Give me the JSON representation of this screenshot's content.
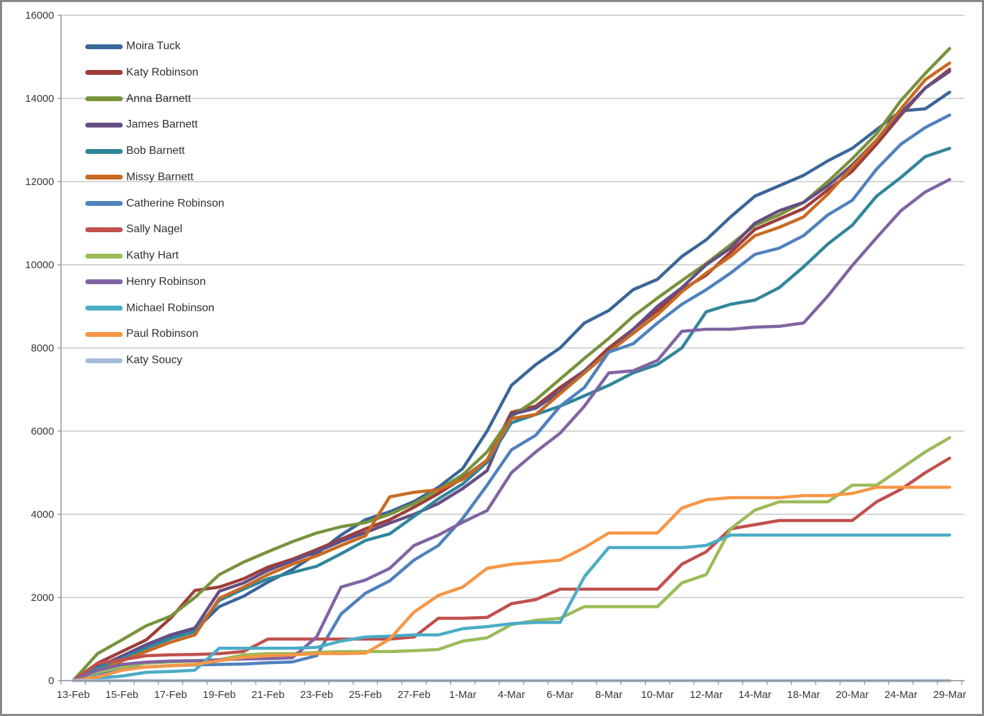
{
  "chart_data": {
    "type": "line",
    "title": "",
    "xlabel": "",
    "ylabel": "",
    "grid": true,
    "legend_position": "top-left-inside",
    "y_axis": {
      "min": 0,
      "max": 16000,
      "step": 2000,
      "tick_labels": [
        "0",
        "2000",
        "4000",
        "6000",
        "8000",
        "10000",
        "12000",
        "14000",
        "16000"
      ]
    },
    "x_tick_labels": [
      "13-Feb",
      "15-Feb",
      "17-Feb",
      "19-Feb",
      "21-Feb",
      "23-Feb",
      "25-Feb",
      "27-Feb",
      "1-Mar",
      "4-Mar",
      "6-Mar",
      "8-Mar",
      "10-Mar",
      "12-Mar",
      "14-Mar",
      "18-Mar",
      "20-Mar",
      "24-Mar",
      "29-Mar"
    ],
    "categories": [
      "13-Feb",
      "",
      "15-Feb",
      "",
      "17-Feb",
      "",
      "19-Feb",
      "",
      "21-Feb",
      "",
      "23-Feb",
      "",
      "25-Feb",
      "",
      "27-Feb",
      "",
      "1-Mar",
      "",
      "4-Mar",
      "",
      "6-Mar",
      "",
      "8-Mar",
      "",
      "10-Mar",
      "",
      "12-Mar",
      "",
      "14-Mar",
      "",
      "18-Mar",
      "",
      "20-Mar",
      "",
      "24-Mar",
      "",
      "29-Mar"
    ],
    "series": [
      {
        "name": "Moira Tuck",
        "color": "#3A6698",
        "values": [
          0,
          350,
          560,
          810,
          1040,
          1210,
          1780,
          2030,
          2370,
          2670,
          3050,
          3500,
          3870,
          4060,
          4310,
          4650,
          5100,
          6000,
          7100,
          7600,
          8000,
          8600,
          8900,
          9400,
          9650,
          10200,
          10600,
          11150,
          11650,
          11900,
          12150,
          12500,
          12800,
          13250,
          13700,
          13750,
          14150
        ]
      },
      {
        "name": "Katy Robinson",
        "color": "#9C3D3A",
        "values": [
          0,
          420,
          700,
          980,
          1500,
          2170,
          2250,
          2450,
          2730,
          2920,
          3150,
          3400,
          3650,
          3870,
          4170,
          4500,
          4870,
          5300,
          6450,
          6600,
          7050,
          7450,
          8000,
          8450,
          8900,
          9400,
          9750,
          10300,
          10850,
          11100,
          11350,
          11800,
          12250,
          12900,
          13600,
          14250,
          14700
        ]
      },
      {
        "name": "Anna Barnett",
        "color": "#77933C",
        "values": [
          0,
          650,
          980,
          1320,
          1550,
          2000,
          2550,
          2850,
          3100,
          3340,
          3550,
          3700,
          3800,
          4000,
          4260,
          4590,
          4950,
          5500,
          6350,
          6750,
          7250,
          7750,
          8230,
          8760,
          9200,
          9620,
          10030,
          10480,
          10950,
          11200,
          11500,
          12000,
          12550,
          13150,
          13950,
          14600,
          15200
        ]
      },
      {
        "name": "James Barnett",
        "color": "#654E84",
        "values": [
          0,
          330,
          590,
          865,
          1100,
          1265,
          2150,
          2350,
          2650,
          2880,
          3100,
          3350,
          3560,
          3790,
          4000,
          4260,
          4620,
          5050,
          6400,
          6550,
          6950,
          7450,
          7900,
          8450,
          9000,
          9450,
          10000,
          10400,
          11000,
          11300,
          11500,
          11900,
          12400,
          13000,
          13650,
          14250,
          14650
        ]
      },
      {
        "name": "Bob Barnett",
        "color": "#31869B",
        "values": [
          0,
          305,
          530,
          780,
          1010,
          1180,
          1930,
          2200,
          2450,
          2600,
          2750,
          3050,
          3370,
          3530,
          3950,
          4370,
          4730,
          5250,
          6200,
          6400,
          6600,
          6850,
          7100,
          7400,
          7600,
          8000,
          8870,
          9050,
          9150,
          9450,
          9950,
          10500,
          10950,
          11650,
          12100,
          12600,
          12800
        ]
      },
      {
        "name": "Missy Barnett",
        "color": "#C96A22",
        "values": [
          0,
          220,
          475,
          700,
          925,
          1100,
          1980,
          2250,
          2550,
          2800,
          3000,
          3250,
          3480,
          4420,
          4530,
          4590,
          4840,
          5300,
          6300,
          6400,
          6900,
          7400,
          7900,
          8350,
          8800,
          9350,
          9800,
          10200,
          10700,
          10900,
          11150,
          11700,
          12350,
          13000,
          13750,
          14450,
          14850
        ]
      },
      {
        "name": "Catherine Robinson",
        "color": "#4F81BD",
        "values": [
          0,
          170,
          280,
          330,
          360,
          380,
          390,
          400,
          430,
          450,
          600,
          1600,
          2100,
          2400,
          2900,
          3250,
          3900,
          4700,
          5550,
          5900,
          6600,
          7050,
          7900,
          8100,
          8600,
          9050,
          9400,
          9800,
          10250,
          10400,
          10700,
          11200,
          11550,
          12300,
          12900,
          13300,
          13600
        ]
      },
      {
        "name": "Sally Nagel",
        "color": "#C0504D",
        "values": [
          0,
          420,
          500,
          600,
          620,
          630,
          650,
          700,
          1000,
          1000,
          1000,
          1000,
          1000,
          1000,
          1050,
          1500,
          1500,
          1520,
          1850,
          1950,
          2200,
          2200,
          2200,
          2200,
          2200,
          2800,
          3100,
          3650,
          3750,
          3850,
          3850,
          3850,
          3850,
          4300,
          4600,
          5000,
          5350
        ]
      },
      {
        "name": "Kathy Hart",
        "color": "#9BBB59",
        "values": [
          0,
          200,
          330,
          420,
          450,
          470,
          500,
          620,
          650,
          650,
          680,
          700,
          700,
          700,
          720,
          750,
          950,
          1030,
          1350,
          1450,
          1500,
          1780,
          1780,
          1780,
          1780,
          2350,
          2550,
          3650,
          4100,
          4300,
          4300,
          4300,
          4700,
          4700,
          5100,
          5500,
          5840
        ]
      },
      {
        "name": "Henry Robinson",
        "color": "#8064A2",
        "values": [
          0,
          250,
          390,
          445,
          470,
          480,
          500,
          520,
          530,
          550,
          1050,
          2250,
          2420,
          2700,
          3250,
          3500,
          3810,
          4090,
          5000,
          5500,
          5950,
          6600,
          7400,
          7450,
          7700,
          8400,
          8450,
          8450,
          8500,
          8520,
          8600,
          9250,
          9980,
          10650,
          11300,
          11750,
          12050
        ]
      },
      {
        "name": "Michael Robinson",
        "color": "#4BACC6",
        "values": [
          0,
          60,
          110,
          200,
          220,
          250,
          780,
          780,
          780,
          780,
          800,
          950,
          1050,
          1070,
          1100,
          1100,
          1250,
          1300,
          1370,
          1400,
          1400,
          2500,
          3200,
          3200,
          3200,
          3200,
          3250,
          3500,
          3500,
          3500,
          3500,
          3500,
          3500,
          3500,
          3500,
          3500,
          3500
        ]
      },
      {
        "name": "Paul Robinson",
        "color": "#F79646",
        "values": [
          0,
          85,
          250,
          330,
          360,
          390,
          480,
          560,
          600,
          620,
          650,
          650,
          660,
          1000,
          1650,
          2050,
          2250,
          2700,
          2800,
          2850,
          2900,
          3200,
          3550,
          3550,
          3550,
          4150,
          4350,
          4400,
          4400,
          4400,
          4450,
          4450,
          4500,
          4650,
          4650,
          4650,
          4650
        ]
      },
      {
        "name": "Katy Soucy",
        "color": "#A6BDDB",
        "values": [
          0,
          0,
          0,
          0,
          0,
          0,
          0,
          0,
          0,
          0,
          0,
          0,
          0,
          0,
          0,
          0,
          0,
          0,
          0,
          0,
          0,
          0,
          0,
          0,
          0,
          0,
          0,
          0,
          0,
          0,
          0,
          0,
          0,
          0,
          0,
          0,
          0
        ]
      }
    ],
    "style": {
      "gridline_color": "#ABABAB",
      "axis_color": "#8C8C8C",
      "line_width": 4.5
    }
  }
}
